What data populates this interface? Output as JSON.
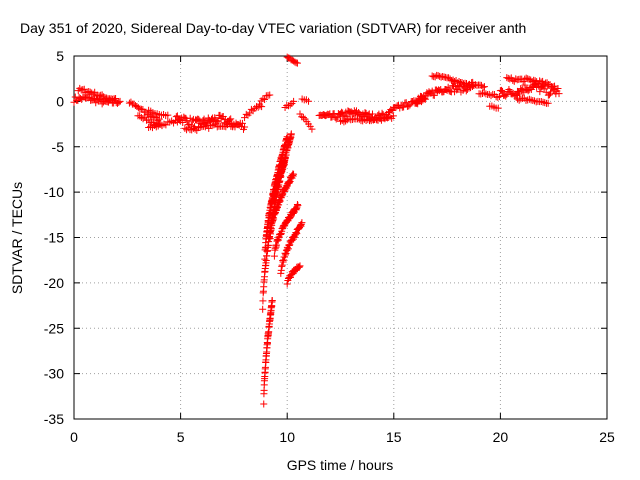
{
  "chart_data": {
    "type": "scatter",
    "title": "Day 351 of 2020, Sidereal Day-to-day VTEC variation (SDTVAR) for receiver anth",
    "xlabel": "GPS time / hours",
    "ylabel": "SDTVAR / TECUs",
    "xlim": [
      0,
      25
    ],
    "ylim": [
      -35,
      5
    ],
    "xticks": [
      "0",
      "5",
      "10",
      "15",
      "20",
      "25"
    ],
    "yticks": [
      "5",
      "0",
      "-5",
      "-10",
      "-15",
      "-20",
      "-25",
      "-30",
      "-35"
    ],
    "grid": true,
    "marker": "+",
    "color": "#ff0000",
    "segments": [
      {
        "x0": 0.0,
        "x1": 2.2,
        "y0": 0.2,
        "y1": 0.0,
        "amp": 0.6,
        "step": 0.06
      },
      {
        "x0": 0.2,
        "x1": 2.0,
        "y0": 1.2,
        "y1": 0.3,
        "amp": 0.4,
        "step": 0.07
      },
      {
        "x0": 2.6,
        "x1": 4.0,
        "y0": -0.2,
        "y1": -2.0,
        "amp": 0.3,
        "step": 0.07
      },
      {
        "x0": 3.0,
        "x1": 4.2,
        "y0": -1.5,
        "y1": -2.8,
        "amp": 0.3,
        "step": 0.08
      },
      {
        "x0": 3.5,
        "x1": 4.4,
        "y0": -1.0,
        "y1": -1.6,
        "amp": 0.2,
        "step": 0.1
      },
      {
        "x0": 3.5,
        "x1": 5.0,
        "y0": -2.8,
        "y1": -2.2,
        "amp": 0.3,
        "step": 0.09
      },
      {
        "x0": 4.8,
        "x1": 8.0,
        "y0": -2.0,
        "y1": -2.4,
        "amp": 0.9,
        "step": 0.05
      },
      {
        "x0": 5.2,
        "x1": 7.5,
        "y0": -3.0,
        "y1": -2.6,
        "amp": 0.4,
        "step": 0.08
      },
      {
        "x0": 8.0,
        "x1": 8.8,
        "y0": -1.5,
        "y1": -0.5,
        "amp": 0.5,
        "step": 0.08
      },
      {
        "x0": 8.7,
        "x1": 9.2,
        "y0": -0.3,
        "y1": 0.8,
        "amp": 0.3,
        "step": 0.08
      },
      {
        "x0": 9.9,
        "x1": 10.3,
        "y0": -0.5,
        "y1": 0.0,
        "amp": 0.3,
        "step": 0.08
      },
      {
        "x0": 10.0,
        "x1": 10.5,
        "y0": 4.9,
        "y1": 4.2,
        "amp": 0.1,
        "step": 0.06
      },
      {
        "x0": 10.7,
        "x1": 11.0,
        "y0": 0.3,
        "y1": -0.1,
        "amp": 0.2,
        "step": 0.1
      },
      {
        "x0": 10.6,
        "x1": 11.2,
        "y0": -1.5,
        "y1": -3.2,
        "amp": 0.3,
        "step": 0.08
      },
      {
        "x0": 11.5,
        "x1": 14.8,
        "y0": -1.5,
        "y1": -1.5,
        "amp": 0.7,
        "step": 0.05
      },
      {
        "x0": 12.5,
        "x1": 15.0,
        "y0": -2.2,
        "y1": -1.8,
        "amp": 0.3,
        "step": 0.08
      },
      {
        "x0": 14.8,
        "x1": 16.5,
        "y0": -1.2,
        "y1": 0.5,
        "amp": 0.5,
        "step": 0.06
      },
      {
        "x0": 16.0,
        "x1": 18.8,
        "y0": 0.4,
        "y1": 2.0,
        "amp": 0.8,
        "step": 0.05
      },
      {
        "x0": 16.8,
        "x1": 19.3,
        "y0": 2.8,
        "y1": 1.5,
        "amp": 0.3,
        "step": 0.07
      },
      {
        "x0": 19.0,
        "x1": 20.0,
        "y0": 0.8,
        "y1": 0.5,
        "amp": 0.4,
        "step": 0.08
      },
      {
        "x0": 19.5,
        "x1": 20.0,
        "y0": -0.6,
        "y1": -0.8,
        "amp": 0.2,
        "step": 0.1
      },
      {
        "x0": 20.0,
        "x1": 22.8,
        "y0": 1.2,
        "y1": 1.4,
        "amp": 1.0,
        "step": 0.05
      },
      {
        "x0": 20.3,
        "x1": 22.6,
        "y0": 2.6,
        "y1": 1.8,
        "amp": 0.4,
        "step": 0.07
      },
      {
        "x0": 20.8,
        "x1": 22.3,
        "y0": 0.3,
        "y1": -0.2,
        "amp": 0.3,
        "step": 0.08
      }
    ],
    "curves": [
      {
        "x0": 8.9,
        "x1": 9.3,
        "y0": -33.5,
        "y1": -22.0,
        "step": 0.008
      },
      {
        "x0": 8.85,
        "x1": 10.2,
        "y0": -23.0,
        "y1": -3.5,
        "step": 0.012
      },
      {
        "x0": 8.95,
        "x1": 10.0,
        "y0": -17.5,
        "y1": -4.0,
        "step": 0.014
      },
      {
        "x0": 9.0,
        "x1": 9.9,
        "y0": -16.0,
        "y1": -6.5,
        "step": 0.016
      },
      {
        "x0": 9.2,
        "x1": 10.3,
        "y0": -15.0,
        "y1": -8.0,
        "step": 0.018
      },
      {
        "x0": 9.4,
        "x1": 10.5,
        "y0": -17.0,
        "y1": -11.5,
        "step": 0.02
      },
      {
        "x0": 9.7,
        "x1": 10.7,
        "y0": -19.0,
        "y1": -13.5,
        "step": 0.022
      },
      {
        "x0": 10.0,
        "x1": 10.6,
        "y0": -20.2,
        "y1": -18.0,
        "step": 0.03
      }
    ]
  }
}
